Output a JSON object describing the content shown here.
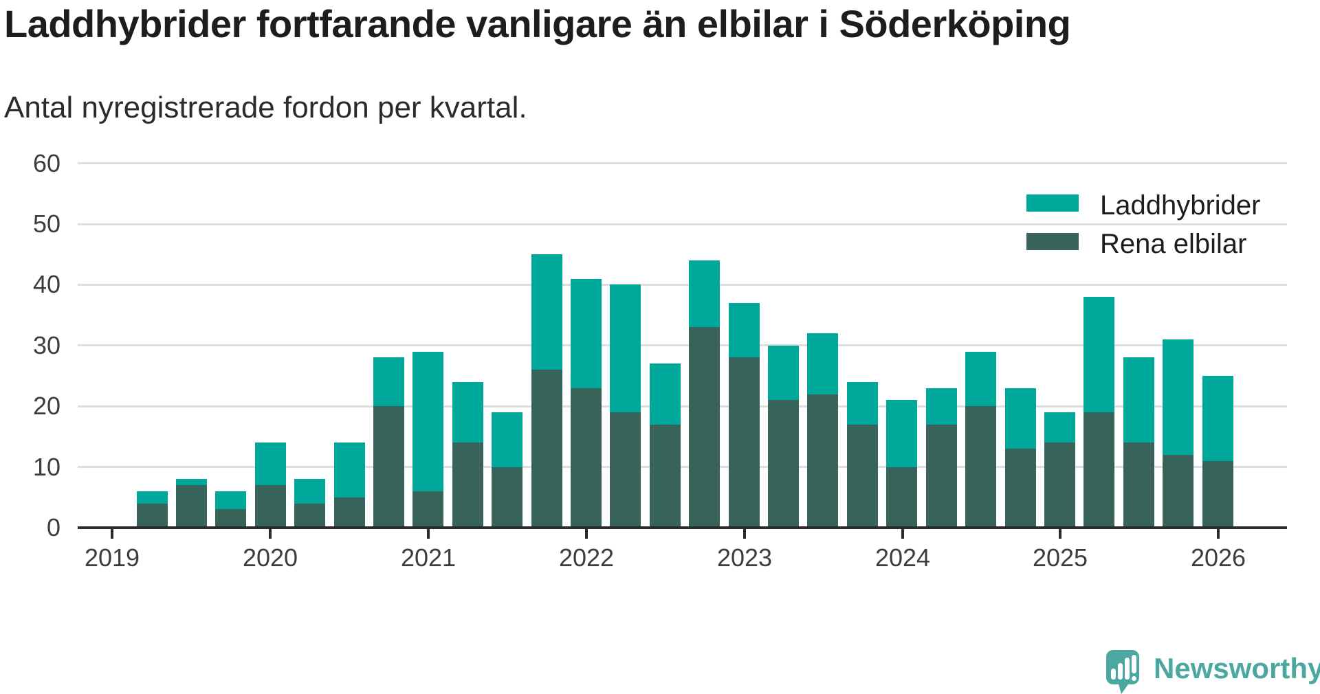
{
  "header": {
    "title": "Laddhybrider fortfarande vanligare än elbilar i Söderköping",
    "subtitle": "Antal nyregistrerade fordon per kvartal."
  },
  "legend": {
    "items": [
      {
        "label": "Laddhybrider",
        "color": "#00a79b"
      },
      {
        "label": "Rena elbilar",
        "color": "#38635a"
      }
    ]
  },
  "branding": {
    "logo_text": "Newsworthy",
    "logo_color": "#4ba8a0"
  },
  "chart_data": {
    "type": "bar",
    "stacked": true,
    "title": "Laddhybrider fortfarande vanligare än elbilar i Söderköping",
    "subtitle": "Antal nyregistrerade fordon per kvartal.",
    "xlabel": "",
    "ylabel": "",
    "ylim": [
      0,
      60
    ],
    "y_ticks": [
      0,
      10,
      20,
      30,
      40,
      50,
      60
    ],
    "x_year_labels": [
      "2019",
      "2020",
      "2021",
      "2022",
      "2023",
      "2024",
      "2025",
      "2026"
    ],
    "grid": true,
    "legend_position": "top-right",
    "categories": [
      "2019 Q2",
      "2019 Q3",
      "2019 Q4",
      "2020 Q1",
      "2020 Q2",
      "2020 Q3",
      "2020 Q4",
      "2021 Q1",
      "2021 Q2",
      "2021 Q3",
      "2021 Q4",
      "2022 Q1",
      "2022 Q2",
      "2022 Q3",
      "2022 Q4",
      "2023 Q1",
      "2023 Q2",
      "2023 Q3",
      "2023 Q4",
      "2024 Q1",
      "2024 Q2",
      "2024 Q3",
      "2024 Q4",
      "2025 Q1",
      "2025 Q2",
      "2025 Q3",
      "2025 Q4",
      "2026 Q1"
    ],
    "series": [
      {
        "name": "Rena elbilar",
        "color": "#38635a",
        "values": [
          4,
          7,
          3,
          7,
          4,
          5,
          20,
          6,
          14,
          10,
          26,
          23,
          19,
          17,
          33,
          28,
          21,
          22,
          17,
          10,
          17,
          20,
          13,
          14,
          19,
          14,
          12,
          11
        ]
      },
      {
        "name": "Laddhybrider",
        "color": "#00a79b",
        "values": [
          2,
          1,
          3,
          7,
          4,
          9,
          8,
          23,
          10,
          9,
          19,
          18,
          21,
          10,
          11,
          9,
          9,
          10,
          7,
          11,
          6,
          9,
          10,
          5,
          19,
          14,
          19,
          14
        ]
      }
    ],
    "totals": [
      6,
      8,
      6,
      14,
      8,
      14,
      28,
      29,
      24,
      19,
      45,
      41,
      40,
      27,
      44,
      37,
      30,
      32,
      24,
      21,
      23,
      29,
      23,
      19,
      38,
      28,
      31,
      25
    ]
  }
}
